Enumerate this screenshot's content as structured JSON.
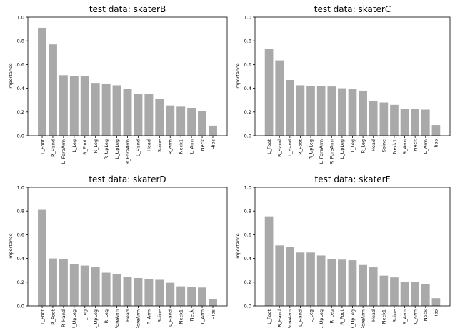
{
  "chart_data": [
    {
      "type": "bar",
      "title": "test data: skaterB",
      "ylabel": "Importance",
      "xlabel": "",
      "ylim": [
        0,
        1.0
      ],
      "yticks": [
        "0.0",
        "0.2",
        "0.4",
        "0.6",
        "0.8",
        "1.0"
      ],
      "categories": [
        "L_Foot",
        "R_Hand",
        "L_ForeArm",
        "L_Leg",
        "R_Foot",
        "R_Leg",
        "R_UpLeg",
        "L_UpLeg",
        "R_ForeArm",
        "L_Hand",
        "Head",
        "Spine",
        "R_Arm",
        "Neck1",
        "L_Arm",
        "Neck",
        "Hips"
      ],
      "values": [
        0.91,
        0.77,
        0.51,
        0.505,
        0.5,
        0.445,
        0.44,
        0.425,
        0.395,
        0.355,
        0.35,
        0.31,
        0.255,
        0.245,
        0.235,
        0.21,
        0.085
      ],
      "color": "#a9a9a9"
    },
    {
      "type": "bar",
      "title": "test data: skaterC",
      "ylabel": "Importance",
      "xlabel": "",
      "ylim": [
        0,
        1.0
      ],
      "yticks": [
        "0.0",
        "0.2",
        "0.4",
        "0.6",
        "0.8",
        "1.0"
      ],
      "categories": [
        "L_Foot",
        "R_Hand",
        "L_Hand",
        "R_Foot",
        "R_UpLeg",
        "L_ForeArm",
        "R_ForeArm",
        "L_UpLeg",
        "L_Leg",
        "R_Leg",
        "Head",
        "Spine",
        "Neck1",
        "R_Arm",
        "Neck",
        "L_Arm",
        "Hips"
      ],
      "values": [
        0.73,
        0.635,
        0.47,
        0.425,
        0.42,
        0.42,
        0.415,
        0.4,
        0.395,
        0.38,
        0.29,
        0.28,
        0.26,
        0.225,
        0.225,
        0.22,
        0.09
      ],
      "color": "#a9a9a9"
    },
    {
      "type": "bar",
      "title": "test data: skaterD",
      "ylabel": "Importance",
      "xlabel": "",
      "ylim": [
        0,
        1.0
      ],
      "yticks": [
        "0.0",
        "0.2",
        "0.4",
        "0.6",
        "0.8",
        "1.0"
      ],
      "categories": [
        "L_Foot",
        "R_Foot",
        "R_Hand",
        "R_UpLeg",
        "L_Leg",
        "L_UpLeg",
        "R_Leg",
        "L_ForeArm",
        "Head",
        "R_ForeArm",
        "R_Arm",
        "Spine",
        "L_Hand",
        "Neck1",
        "Neck",
        "L_Arm",
        "Hips"
      ],
      "values": [
        0.81,
        0.4,
        0.395,
        0.355,
        0.34,
        0.325,
        0.28,
        0.265,
        0.245,
        0.235,
        0.225,
        0.22,
        0.195,
        0.165,
        0.16,
        0.155,
        0.055
      ],
      "color": "#a9a9a9"
    },
    {
      "type": "bar",
      "title": "test data: skaterF",
      "ylabel": "Importance",
      "xlabel": "",
      "ylim": [
        0,
        1.0
      ],
      "yticks": [
        "0.0",
        "0.2",
        "0.4",
        "0.6",
        "0.8",
        "1.0"
      ],
      "categories": [
        "L_Foot",
        "R_Hand",
        "L_ForeArm",
        "L_Hand",
        "L_Leg",
        "L_UpLeg",
        "R_Leg",
        "R_Foot",
        "R_UpLeg",
        "R_ForeArm",
        "Head",
        "Neck1",
        "Spine",
        "R_Arm",
        "L_Arm",
        "Neck",
        "Hips"
      ],
      "values": [
        0.755,
        0.51,
        0.495,
        0.45,
        0.45,
        0.425,
        0.395,
        0.39,
        0.385,
        0.345,
        0.325,
        0.255,
        0.24,
        0.205,
        0.2,
        0.185,
        0.065
      ],
      "color": "#a9a9a9"
    }
  ]
}
